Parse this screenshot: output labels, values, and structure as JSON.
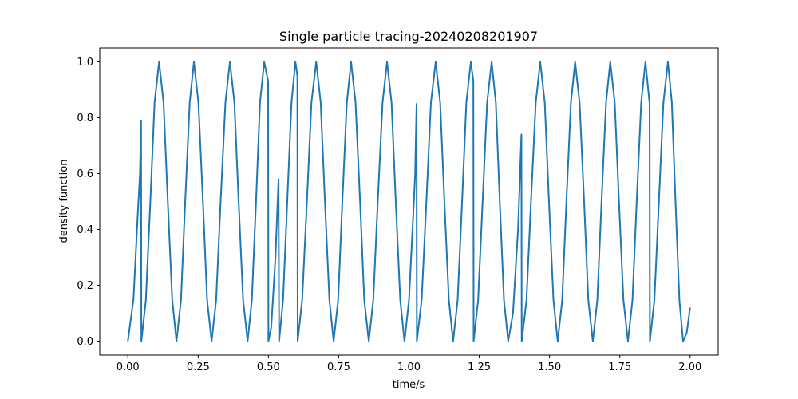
{
  "chart_data": {
    "type": "line",
    "title": "Single particle tracing-20240208201907",
    "x_label": "time/s",
    "y_label": "density function",
    "color": "#1f77b4",
    "x": [
      0,
      0.02,
      0.035,
      0.043,
      0.047,
      0.048,
      0.064,
      0.08,
      0.095,
      0.111,
      0.127,
      0.142,
      0.158,
      0.173,
      0.189,
      0.204,
      0.22,
      0.235,
      0.251,
      0.267,
      0.282,
      0.298,
      0.314,
      0.33,
      0.347,
      0.363,
      0.379,
      0.394,
      0.41,
      0.426,
      0.441,
      0.456,
      0.47,
      0.485,
      0.499,
      0.5,
      0.51,
      0.525,
      0.536,
      0.538,
      0.552,
      0.567,
      0.582,
      0.596,
      0.603,
      0.604,
      0.62,
      0.637,
      0.653,
      0.67,
      0.686,
      0.701,
      0.717,
      0.732,
      0.748,
      0.763,
      0.779,
      0.794,
      0.81,
      0.826,
      0.841,
      0.857,
      0.873,
      0.889,
      0.906,
      0.922,
      0.938,
      0.953,
      0.969,
      0.984,
      1.0,
      1.015,
      1.022,
      1.027,
      1.028,
      1.045,
      1.062,
      1.078,
      1.095,
      1.111,
      1.126,
      1.142,
      1.157,
      1.173,
      1.189,
      1.204,
      1.22,
      1.229,
      1.23,
      1.246,
      1.262,
      1.278,
      1.294,
      1.309,
      1.323,
      1.338,
      1.353,
      1.37,
      1.388,
      1.4,
      1.401,
      1.418,
      1.434,
      1.451,
      1.467,
      1.483,
      1.498,
      1.514,
      1.529,
      1.545,
      1.56,
      1.576,
      1.591,
      1.607,
      1.623,
      1.638,
      1.654,
      1.67,
      1.685,
      1.701,
      1.716,
      1.732,
      1.747,
      1.763,
      1.779,
      1.795,
      1.81,
      1.826,
      1.841,
      1.856,
      1.857,
      1.873,
      1.889,
      1.905,
      1.921,
      1.935,
      1.948,
      1.962,
      1.975,
      1.988,
      2.0
    ],
    "values": [
      0,
      0.15,
      0.45,
      0.6,
      0.79,
      0,
      0.146,
      0.5,
      0.854,
      1,
      0.854,
      0.5,
      0.146,
      0,
      0.146,
      0.5,
      0.854,
      1,
      0.854,
      0.5,
      0.146,
      0,
      0.146,
      0.5,
      0.854,
      1,
      0.854,
      0.5,
      0.146,
      0,
      0.146,
      0.5,
      0.854,
      1,
      0.93,
      0,
      0.05,
      0.3,
      0.58,
      0,
      0.146,
      0.5,
      0.854,
      1,
      0.95,
      0,
      0.146,
      0.5,
      0.854,
      1,
      0.854,
      0.5,
      0.146,
      0,
      0.146,
      0.5,
      0.854,
      1,
      0.854,
      0.5,
      0.146,
      0,
      0.146,
      0.5,
      0.854,
      1,
      0.854,
      0.5,
      0.146,
      0,
      0.146,
      0.45,
      0.6,
      0.85,
      0,
      0.146,
      0.5,
      0.854,
      1,
      0.854,
      0.5,
      0.146,
      0,
      0.146,
      0.5,
      0.854,
      1,
      0.93,
      0,
      0.146,
      0.5,
      0.854,
      1,
      0.854,
      0.5,
      0.146,
      0,
      0.1,
      0.4,
      0.74,
      0,
      0.146,
      0.5,
      0.854,
      1,
      0.854,
      0.5,
      0.146,
      0,
      0.146,
      0.5,
      0.854,
      1,
      0.854,
      0.5,
      0.146,
      0,
      0.146,
      0.5,
      0.854,
      1,
      0.854,
      0.5,
      0.146,
      0,
      0.146,
      0.5,
      0.854,
      1,
      0.85,
      0,
      0.146,
      0.5,
      0.854,
      1,
      0.854,
      0.5,
      0.146,
      0,
      0.03,
      0.12
    ],
    "xlim": [
      -0.1,
      2.1
    ],
    "xticks": [
      {
        "value": 0,
        "label": "0.00"
      },
      {
        "value": 0.25,
        "label": "0.25"
      },
      {
        "value": 0.5,
        "label": "0.50"
      },
      {
        "value": 0.75,
        "label": "0.75"
      },
      {
        "value": 1,
        "label": "1.00"
      },
      {
        "value": 1.25,
        "label": "1.25"
      },
      {
        "value": 1.5,
        "label": "1.50"
      },
      {
        "value": 1.75,
        "label": "1.75"
      },
      {
        "value": 2,
        "label": "2.00"
      }
    ],
    "ylim": [
      -0.05,
      1.05
    ],
    "yticks": [
      {
        "value": 0,
        "label": "0.0"
      },
      0.2,
      0.4,
      0.6,
      0.8,
      {
        "value": 1,
        "label": "1.0"
      }
    ]
  }
}
